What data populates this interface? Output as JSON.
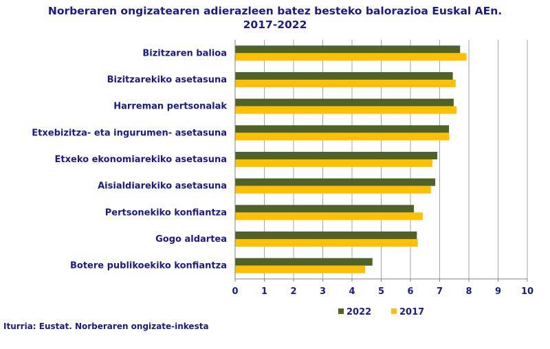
{
  "chart_data": {
    "type": "bar",
    "orientation": "horizontal",
    "title_line1": "Norberaren ongizatearen adierazleen batez besteko balorazioa Euskal AEn.",
    "title_line2": "2017-2022",
    "categories": [
      "Bizitzaren balioa",
      "Bizitzarekiko asetasuna",
      "Harreman pertsonalak",
      "Etxebizitza- eta ingurumen- asetasuna",
      "Etxeko ekonomiarekiko asetasuna",
      "Aisialdiarekiko asetasuna",
      "Pertsonekiko konfiantza",
      "Gogo aldartea",
      "Botere publikoekiko konfiantza"
    ],
    "series": [
      {
        "name": "2022",
        "color": "#4f6228",
        "values": [
          7.7,
          7.45,
          7.48,
          7.32,
          6.92,
          6.85,
          6.12,
          6.22,
          4.7
        ]
      },
      {
        "name": "2017",
        "color": "#ffc000",
        "values": [
          7.92,
          7.55,
          7.58,
          7.33,
          6.75,
          6.7,
          6.42,
          6.25,
          4.45
        ]
      }
    ],
    "xlim": [
      0,
      10
    ],
    "xticks": [
      "0",
      "1",
      "2",
      "3",
      "4",
      "5",
      "6",
      "7",
      "8",
      "9",
      "10"
    ],
    "grid": true,
    "legend_position": "bottom"
  },
  "source_text": "Iturria: Eustat. Norberaren ongizate-inkesta"
}
